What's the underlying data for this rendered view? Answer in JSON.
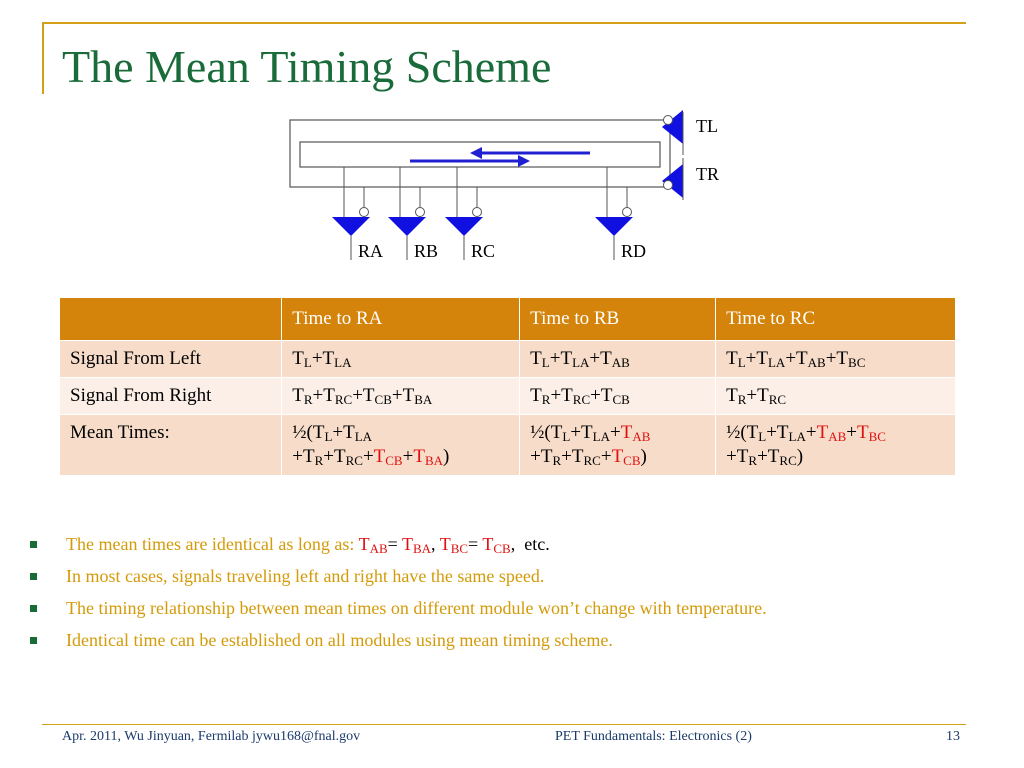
{
  "slide": {
    "title": "The Mean Timing Scheme",
    "page_number": "13"
  },
  "diagram": {
    "labels": [
      "TL",
      "TR",
      "RA",
      "RB",
      "RC",
      "RD"
    ]
  },
  "table": {
    "headers": [
      "",
      "Time to RA",
      "Time to RB",
      "Time to RC"
    ],
    "rows": [
      "Signal From Left",
      "Signal From Right",
      "Mean Times:"
    ]
  },
  "bullets": {
    "b1_text": "The mean times are identical as long as: ",
    "b1_etc": "etc.",
    "b2": "In most cases, signals traveling left and right have the same speed.",
    "b3": "The timing relationship between mean times on different module won’t change with temperature.",
    "b4": "Identical time can be established on all modules using mean timing scheme."
  },
  "footer": {
    "left": "Apr. 2011, Wu Jinyuan, Fermilab jywu168@fnal.gov",
    "center": "PET Fundamentals: Electronics (2)"
  },
  "colors": {
    "title": "#1a6b3a",
    "frame": "#d4a017",
    "table_header": "#d4840a",
    "bullet_text": "#d49a08",
    "highlight": "#e01010",
    "arrow": "#2020d0"
  }
}
